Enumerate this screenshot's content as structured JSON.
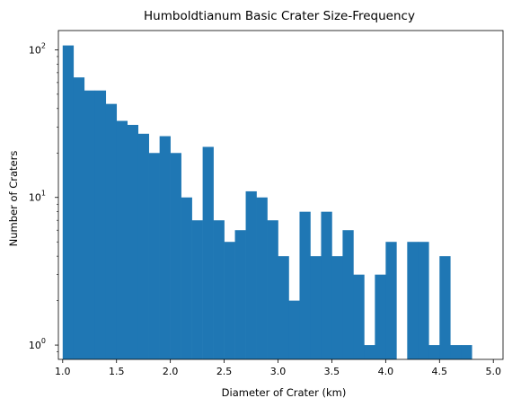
{
  "chart_data": {
    "type": "bar",
    "title": "Humboldtianum Basic Crater Size-Frequency",
    "xlabel": "Diameter of Crater (km)",
    "ylabel": "Number of Craters",
    "yscale": "log",
    "xlim": [
      0.96,
      5.09
    ],
    "ylim": [
      0.8,
      135
    ],
    "x_ticks": [
      "1.0",
      "1.5",
      "2.0",
      "2.5",
      "3.0",
      "3.5",
      "4.0",
      "4.5",
      "5.0"
    ],
    "x_tick_values": [
      1.0,
      1.5,
      2.0,
      2.5,
      3.0,
      3.5,
      4.0,
      4.5,
      5.0
    ],
    "y_ticks": [
      {
        "value": 1,
        "base": "10",
        "exp": "0"
      },
      {
        "value": 10,
        "base": "10",
        "exp": "1"
      },
      {
        "value": 100,
        "base": "10",
        "exp": "2"
      }
    ],
    "bar_color": "#1f77b4",
    "bin_width": 0.1,
    "bin_edges_start": 1.0,
    "values": [
      107,
      65,
      53,
      53,
      43,
      33,
      31,
      27,
      20,
      26,
      20,
      10,
      7,
      22,
      7,
      5,
      6,
      11,
      10,
      7,
      4,
      2,
      8,
      4,
      8,
      4,
      6,
      3,
      1,
      3,
      5,
      0,
      5,
      5,
      1,
      4,
      1,
      1
    ]
  }
}
